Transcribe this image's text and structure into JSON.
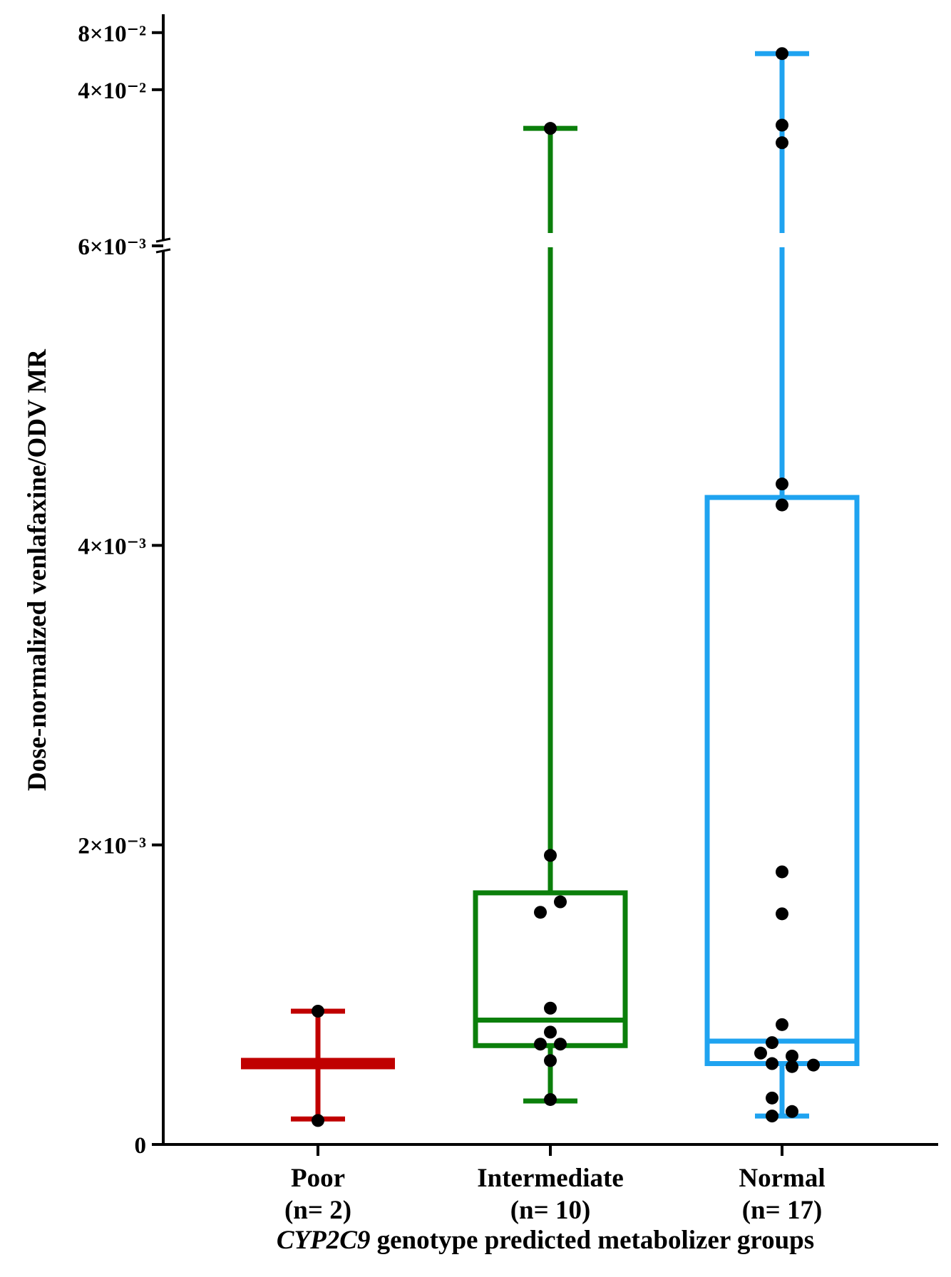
{
  "chart_data": {
    "type": "box",
    "title": "",
    "xlabel_italic": "CYP2C9",
    "xlabel_rest": " genotype predicted metabolizer groups",
    "ylabel": "Dose-normalized venlafaxine/ODV MR",
    "y_axis": {
      "broken": true,
      "lower_segment_range": [
        0,
        0.006
      ],
      "upper_segment_range": [
        0.006,
        0.1
      ],
      "ticks": [
        {
          "value": 0,
          "label": "0"
        },
        {
          "value": 0.002,
          "label": "2×10⁻³"
        },
        {
          "value": 0.004,
          "label": "4×10⁻³"
        },
        {
          "value": 0.006,
          "label": "6×10⁻³"
        },
        {
          "value": 0.04,
          "label": "4×10⁻²"
        },
        {
          "value": 0.08,
          "label": "8×10⁻²"
        }
      ]
    },
    "categories": [
      "Poor",
      "Intermediate",
      "Normal"
    ],
    "n_labels": [
      "(n= 2)",
      "(n= 10)",
      "(n= 17)"
    ],
    "colors": [
      "#c00000",
      "#0b7f0b",
      "#1fa3f0"
    ],
    "groups": [
      {
        "name": "Poor",
        "min": 0.00017,
        "q1": 0.00054,
        "median": 0.00054,
        "q3": 0.00054,
        "max": 0.00089,
        "points": [
          {
            "y": 0.00089,
            "dx": 0
          },
          {
            "y": 0.00016,
            "dx": 0
          }
        ]
      },
      {
        "name": "Intermediate",
        "min": 0.00029,
        "q1": 0.00066,
        "median": 0.00083,
        "q3": 0.00168,
        "max": 0.025,
        "points": [
          {
            "y": 0.025,
            "dx": 0
          },
          {
            "y": 0.00193,
            "dx": 0
          },
          {
            "y": 0.00162,
            "dx": 14
          },
          {
            "y": 0.00155,
            "dx": -14
          },
          {
            "y": 0.00091,
            "dx": 0
          },
          {
            "y": 0.00075,
            "dx": 0
          },
          {
            "y": 0.00067,
            "dx": -14
          },
          {
            "y": 0.00067,
            "dx": 14
          },
          {
            "y": 0.00056,
            "dx": 0
          },
          {
            "y": 0.0003,
            "dx": 0
          }
        ]
      },
      {
        "name": "Normal",
        "min": 0.00019,
        "q1": 0.00054,
        "median": 0.00069,
        "q3": 0.00432,
        "max": 0.062,
        "points": [
          {
            "y": 0.062,
            "dx": 0
          },
          {
            "y": 0.026,
            "dx": 0
          },
          {
            "y": 0.021,
            "dx": 0
          },
          {
            "y": 0.00441,
            "dx": 0
          },
          {
            "y": 0.00427,
            "dx": 0
          },
          {
            "y": 0.00182,
            "dx": 0
          },
          {
            "y": 0.00154,
            "dx": 0
          },
          {
            "y": 0.0008,
            "dx": 0
          },
          {
            "y": 0.00068,
            "dx": -14
          },
          {
            "y": 0.00061,
            "dx": -30
          },
          {
            "y": 0.00059,
            "dx": 14
          },
          {
            "y": 0.00054,
            "dx": -14
          },
          {
            "y": 0.00053,
            "dx": 44
          },
          {
            "y": 0.00052,
            "dx": 14
          },
          {
            "y": 0.00031,
            "dx": -14
          },
          {
            "y": 0.00022,
            "dx": 14
          },
          {
            "y": 0.00019,
            "dx": -14
          }
        ]
      }
    ]
  }
}
